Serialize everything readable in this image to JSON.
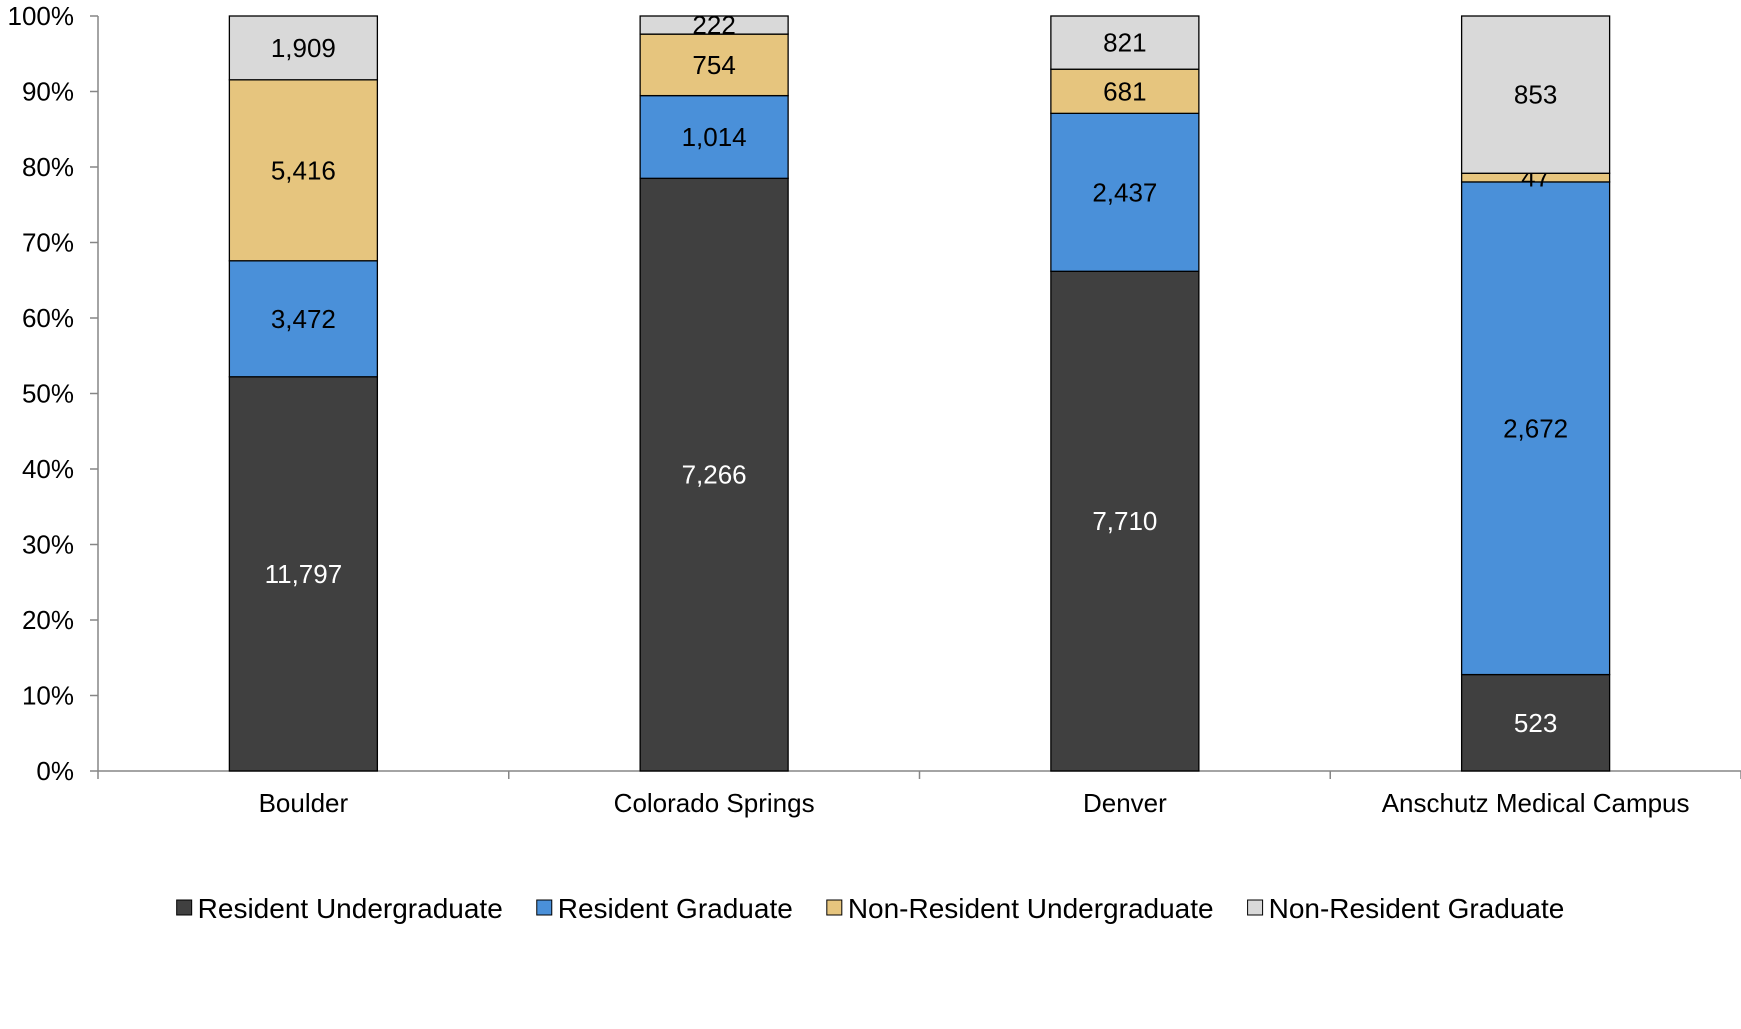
{
  "chart_data": {
    "type": "bar",
    "stacked": "percent",
    "categories": [
      "Boulder",
      "Colorado Springs",
      "Denver",
      "Anschutz Medical Campus"
    ],
    "series": [
      {
        "name": "Resident Undergraduate",
        "values": [
          11797,
          7266,
          7710,
          523
        ],
        "labels": [
          "11,797",
          "7,266",
          "7,710",
          "523"
        ],
        "color": "#404040",
        "label_color": "#ffffff"
      },
      {
        "name": "Resident Graduate",
        "values": [
          3472,
          1014,
          2437,
          2672
        ],
        "labels": [
          "3,472",
          "1,014",
          "2,437",
          "2,672"
        ],
        "color": "#4a90d9",
        "label_color": "#000000"
      },
      {
        "name": "Non-Resident Undergraduate",
        "values": [
          5416,
          754,
          681,
          47
        ],
        "labels": [
          "5,416",
          "754",
          "681",
          "47"
        ],
        "color": "#e6c57e",
        "label_color": "#000000"
      },
      {
        "name": "Non-Resident Graduate",
        "values": [
          1909,
          222,
          821,
          853
        ],
        "labels": [
          "1,909",
          "222",
          "821",
          "853"
        ],
        "color": "#d9d9d9",
        "label_color": "#000000"
      }
    ],
    "y_ticks": [
      "0%",
      "10%",
      "20%",
      "30%",
      "40%",
      "50%",
      "60%",
      "70%",
      "80%",
      "90%",
      "100%"
    ],
    "ylim": [
      0,
      100
    ],
    "grid": false,
    "legend_position": "bottom"
  }
}
